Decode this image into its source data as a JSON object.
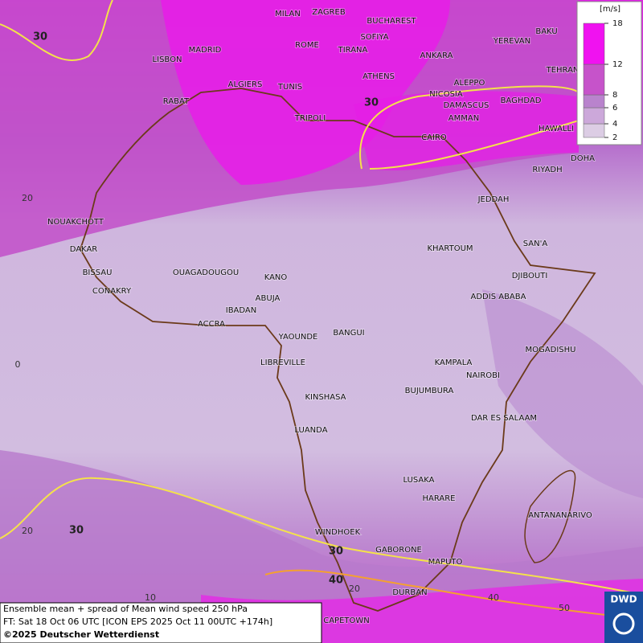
{
  "map": {
    "cities": [
      "MILAN",
      "ZAGREB",
      "BUCHAREST",
      "SOFIYA",
      "ROME",
      "TIRANA",
      "ANKARA",
      "MADRID",
      "LISBON",
      "BAKU",
      "YEREVAN",
      "TEHRAN",
      "ATHENS",
      "ALGIERS",
      "TUNIS",
      "ALEPPO",
      "RABAT",
      "NICOSIA",
      "DAMASCUS",
      "BAGHDAD",
      "TRIPOLI",
      "AMMAN",
      "HAWALLI",
      "CAIRO",
      "DOHA",
      "RIYADH",
      "JEDDAH",
      "NOUAKCHOTT",
      "SAN'A",
      "DAKAR",
      "KHARTOUM",
      "BISSAU",
      "OUAGADOUGOU",
      "DJIBOUTI",
      "KANO",
      "CONAKRY",
      "ABUJA",
      "ADDIS ABABA",
      "IBADAN",
      "ACCRA",
      "YAOUNDE",
      "BANGUI",
      "MOGADISHU",
      "LIBREVILLE",
      "KAMPALA",
      "NAIROBI",
      "KINSHASA",
      "BUJUMBURA",
      "DAR ES SALAAM",
      "LUANDA",
      "LUSAKA",
      "HARARE",
      "ANTANANARIVO",
      "WINDHOEK",
      "GABORONE",
      "MAPUTO",
      "DURBAN",
      "CAPETOWN"
    ],
    "grid_labels": [
      "20",
      "0",
      "20",
      "10",
      "20",
      "40",
      "50"
    ],
    "contour_labels": [
      "30",
      "30",
      "30",
      "30",
      "40"
    ]
  },
  "legend": {
    "unit": "[m/s]",
    "ticks": [
      2,
      4,
      6,
      8,
      12,
      18
    ],
    "colors": [
      "#dccde4",
      "#cca8da",
      "#b983cd",
      "#c653ca",
      "#f012f0"
    ]
  },
  "caption": [
    "Ensemble mean + spread of Mean wind speed 250 hPa",
    "FT: Sat 18 Oct 06 UTC [ICON EPS 2025 Oct 11 00UTC +174h]",
    "©2025 Deutscher Wetterdienst"
  ],
  "logo": "DWD"
}
